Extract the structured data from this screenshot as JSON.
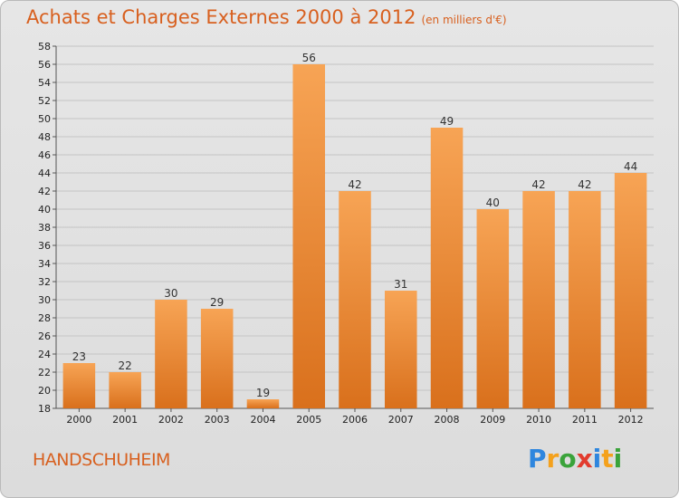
{
  "chart_data": {
    "type": "bar",
    "title": "Achats et Charges Externes 2000 à 2012",
    "subtitle": "(en milliers d'€)",
    "categories": [
      "2000",
      "2001",
      "2002",
      "2003",
      "2004",
      "2005",
      "2006",
      "2007",
      "2008",
      "2009",
      "2010",
      "2011",
      "2012"
    ],
    "values": [
      23,
      22,
      30,
      29,
      19,
      56,
      42,
      31,
      49,
      40,
      42,
      42,
      44
    ],
    "ylim": [
      18,
      58
    ],
    "ytick_step": 2,
    "grid": true,
    "bar_color": "#f08a2c"
  },
  "place": "HANDSCHUHEIM",
  "logo": {
    "letters": [
      "P",
      "r",
      "o",
      "x",
      "i",
      "t",
      "i"
    ],
    "colors": [
      "#2e86de",
      "#f4a11c",
      "#3aa33a",
      "#e23b2e",
      "#2e86de",
      "#f4a11c",
      "#3aa33a"
    ]
  }
}
